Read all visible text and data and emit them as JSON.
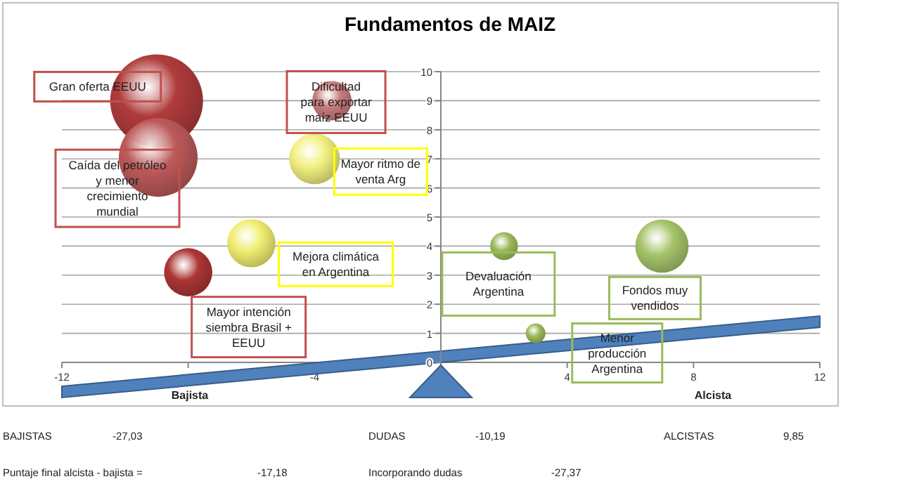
{
  "chart_data": {
    "type": "bubble",
    "title": "Fundamentos de MAIZ",
    "x": [
      -9,
      -8.95,
      -3.45,
      -4,
      -6,
      -8,
      2,
      7,
      3
    ],
    "values": [
      9,
      7.05,
      9,
      7,
      4.1,
      3.1,
      4,
      4,
      1
    ],
    "sizes": [
      1,
      0.72,
      0.18,
      0.3,
      0.27,
      0.27,
      0.09,
      0.33,
      0.045
    ],
    "colors": [
      "#b03c3c",
      "#bd5a5a",
      "#c97c7c",
      "#f2f080",
      "#f0ee70",
      "#ad3535",
      "#9bbb59",
      "#a6c46a",
      "#9bbb59"
    ],
    "xlim": [
      -12,
      12
    ],
    "xticks": [
      -12,
      {
        "value": -8,
        "label": null
      },
      -4,
      {
        "value": 0,
        "label": null
      },
      4,
      8,
      12
    ],
    "ylim": [
      0,
      10
    ],
    "yticks": [
      0,
      1,
      2,
      3,
      4,
      5,
      6,
      7,
      8,
      9,
      10
    ],
    "grid": "y",
    "annotations": [
      "Bajista",
      "Alcista",
      "BAJISTAS",
      "-27,03",
      "DUDAS",
      "-10,19",
      "ALCISTAS",
      "9,85",
      "Puntaje final alcista - bajista =",
      "-17,18",
      "Incorporando dudas",
      "-27,37",
      "Gran oferta EEUU",
      "Caída del petróleo\ny menor\ncrecimiento\nmundial",
      "Dificultad\npara exportar\nmaíz EEUU",
      "Mayor ritmo de\nventa Arg",
      "Mejora climática\nen Argentina",
      "Mayor intención\nsiembra Brasil +\nEEUU",
      "Devaluación\nArgentina",
      "Fondos muy\nvendidos",
      "Menor\nproducción\nArgentina"
    ]
  }
}
